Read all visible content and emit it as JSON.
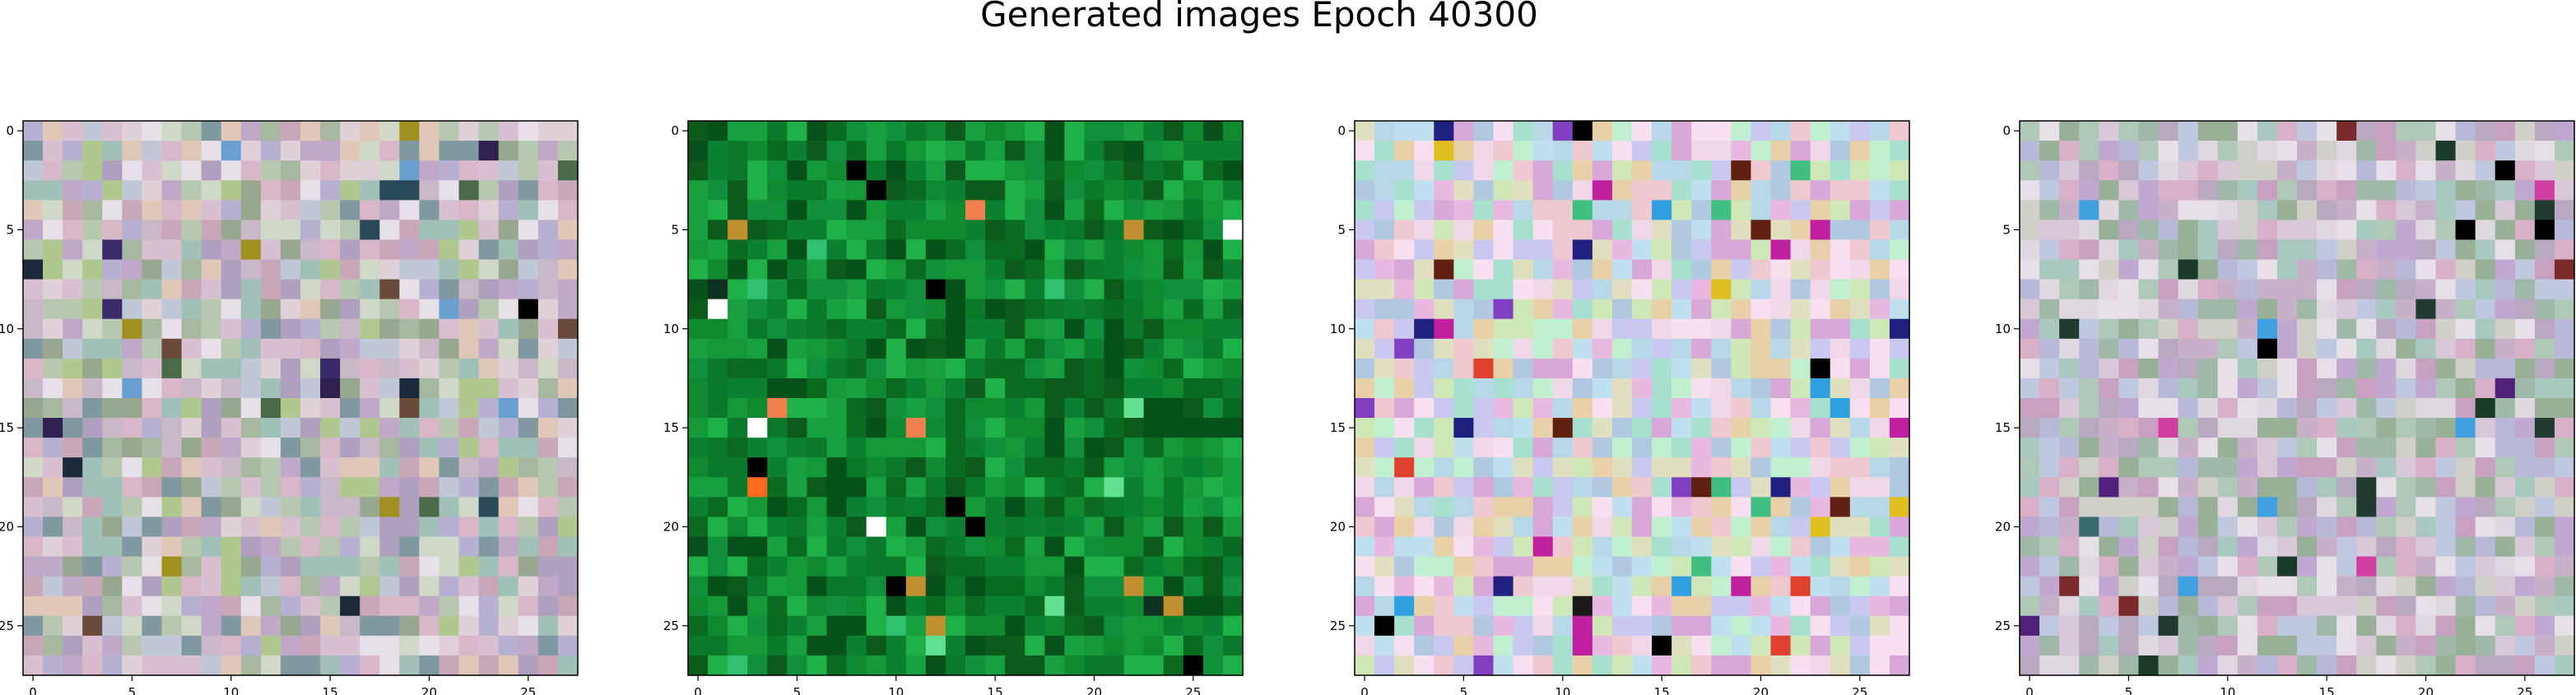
{
  "figure": {
    "title": "Generated images Epoch 40300"
  },
  "chart_data": [
    {
      "type": "heatmap",
      "grid_size": [
        28,
        28
      ],
      "xticks": [
        0,
        5,
        10,
        15,
        20,
        25
      ],
      "yticks": [
        0,
        5,
        10,
        15,
        20,
        25
      ],
      "palette": [
        "#c8b8c8",
        "#b8c8b0",
        "#d8c0d0",
        "#a8b8a0",
        "#c0a8c8",
        "#e0d0d8",
        "#b0a0c0",
        "#d0d8c8",
        "#98a890",
        "#e8e0e8",
        "#c8a8b8",
        "#a0c0b8",
        "#b8b0d0",
        "#d8b8c8",
        "#c0c8d8",
        "#8098a0",
        "#b0c890",
        "#e0c8b8"
      ],
      "accents": [
        "#000000",
        "#1a2a3a",
        "#3a2a6a",
        "#2a4a5a",
        "#6a4a3a",
        "#a09020",
        "#6aa0d0",
        "#4a6a4a",
        "#302050"
      ],
      "accent_density": 0.04
    },
    {
      "type": "heatmap",
      "grid_size": [
        28,
        28
      ],
      "xticks": [
        0,
        5,
        10,
        15,
        20,
        25
      ],
      "yticks": [
        0,
        5,
        10,
        15,
        20,
        25
      ],
      "palette": [
        "#0a7a2a",
        "#108a30",
        "#0a6a20",
        "#18a040",
        "#0c5a1c",
        "#20b048",
        "#0a8030",
        "#149838",
        "#06501a",
        "#10903a"
      ],
      "accents": [
        "#ff6a20",
        "#e03010",
        "#ffffff",
        "#f08050",
        "#60e090",
        "#c09030",
        "#000000",
        "#103020",
        "#30c070"
      ],
      "accent_density": 0.05
    },
    {
      "type": "heatmap",
      "grid_size": [
        28,
        28
      ],
      "xticks": [
        0,
        5,
        10,
        15,
        20,
        25
      ],
      "yticks": [
        0,
        5,
        10,
        15,
        20,
        25
      ],
      "palette": [
        "#e8b8e0",
        "#b8d8e8",
        "#d0e8b8",
        "#f0c8d0",
        "#c8c8f0",
        "#e0e0c0",
        "#a8e0d0",
        "#f0d8e8",
        "#d8a8d8",
        "#c0e0f0",
        "#e8d0a8",
        "#b0c8e0",
        "#f8e0f0",
        "#c0f0d0"
      ],
      "accents": [
        "#000000",
        "#202080",
        "#c020a0",
        "#e04030",
        "#30a0e0",
        "#e0c020",
        "#602010",
        "#1a1a1a",
        "#40c080",
        "#8040c0"
      ],
      "accent_density": 0.07
    },
    {
      "type": "heatmap",
      "grid_size": [
        28,
        28
      ],
      "xticks": [
        0,
        5,
        10,
        15,
        20,
        25
      ],
      "yticks": [
        0,
        5,
        10,
        15,
        20,
        25
      ],
      "palette": [
        "#c8b0c8",
        "#b0c8b8",
        "#d8c8d8",
        "#a0b8a8",
        "#c0a8d0",
        "#e0d8e0",
        "#b8a8c0",
        "#d0d0c8",
        "#98b098",
        "#e8e0e8",
        "#c8a0c0",
        "#a8c8c0",
        "#b8b8d8",
        "#d8b0c8",
        "#c0c8e0"
      ],
      "accents": [
        "#000000",
        "#1a3a2a",
        "#50207a",
        "#3a6a6a",
        "#7a2a2a",
        "#d040a0",
        "#40a0e0",
        "#203a30"
      ],
      "accent_density": 0.04
    }
  ]
}
